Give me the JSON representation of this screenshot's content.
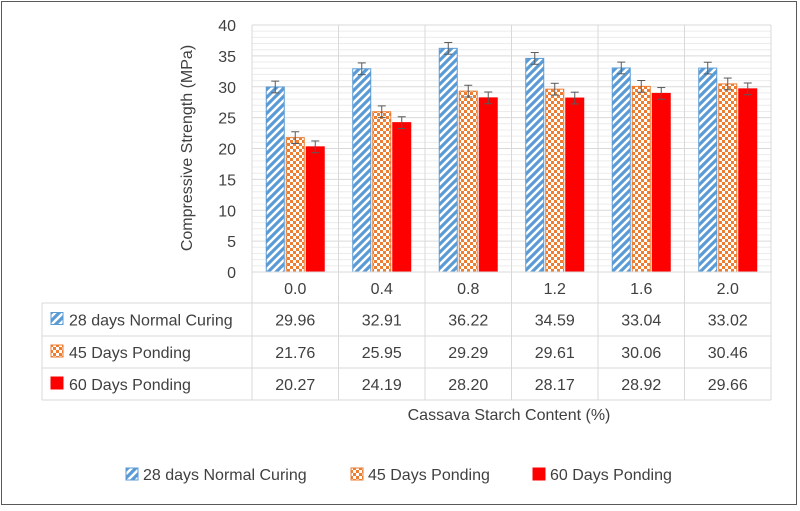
{
  "chart_data": {
    "type": "bar",
    "ylabel": "Compressive Strength (MPa)",
    "xlabel": "Cassava Starch Content (%)",
    "categories": [
      "0.0",
      "0.4",
      "0.8",
      "1.2",
      "1.6",
      "2.0"
    ],
    "ylim": [
      0,
      40
    ],
    "yticks": [
      0,
      5,
      10,
      15,
      20,
      25,
      30,
      35,
      40
    ],
    "grid": true,
    "legend_position": "bottom",
    "error_bar_value": 1.5,
    "series": [
      {
        "name": "28 days Normal Curing",
        "pattern": "diagonal-stripes",
        "color": "#5b9bd5",
        "values": [
          29.96,
          32.91,
          36.22,
          34.59,
          33.04,
          33.02
        ],
        "labels": [
          "29.96",
          "32.91",
          "36.22",
          "34.59",
          "33.04",
          "33.02"
        ]
      },
      {
        "name": "45 Days Ponding",
        "pattern": "checkerboard",
        "color": "#ed7d31",
        "values": [
          21.76,
          25.95,
          29.29,
          29.61,
          30.06,
          30.46
        ],
        "labels": [
          "21.76",
          "25.95",
          "29.29",
          "29.61",
          "30.06",
          "30.46"
        ]
      },
      {
        "name": "60 Days Ponding",
        "pattern": "solid",
        "color": "#ff0000",
        "values": [
          20.27,
          24.19,
          28.2,
          28.17,
          28.92,
          29.66
        ],
        "labels": [
          "20.27",
          "24.19",
          "28.20",
          "28.17",
          "28.92",
          "29.66"
        ]
      }
    ]
  }
}
